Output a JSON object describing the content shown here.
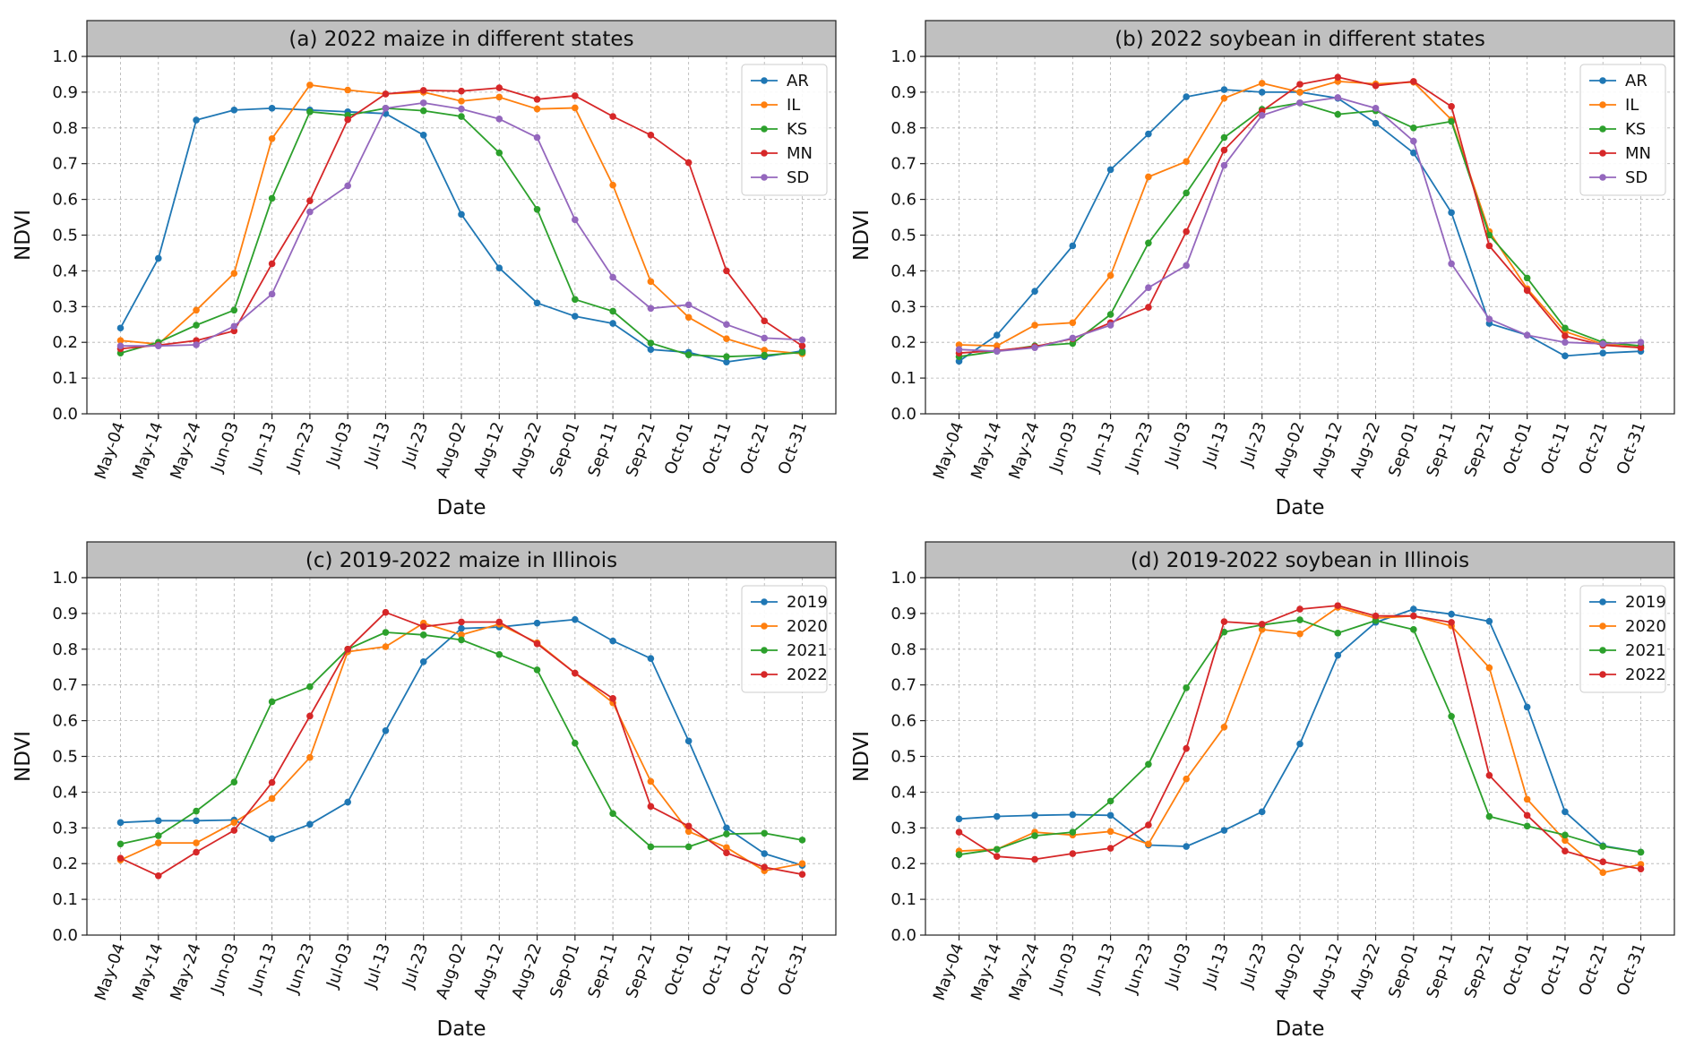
{
  "chart_data": [
    {
      "type": "line",
      "title": "(a) 2022 maize in different states",
      "xlabel": "Date",
      "ylabel": "NDVI",
      "ylim": [
        0.0,
        1.0
      ],
      "yticks": [
        "0.0",
        "0.1",
        "0.2",
        "0.3",
        "0.4",
        "0.5",
        "0.6",
        "0.7",
        "0.8",
        "0.9",
        "1.0"
      ],
      "grid": true,
      "legend_position": "top-right",
      "categories": [
        "May-04",
        "May-14",
        "May-24",
        "Jun-03",
        "Jun-13",
        "Jun-23",
        "Jul-03",
        "Jul-13",
        "Jul-23",
        "Aug-02",
        "Aug-12",
        "Aug-22",
        "Sep-01",
        "Sep-11",
        "Sep-21",
        "Oct-01",
        "Oct-11",
        "Oct-21",
        "Oct-31"
      ],
      "series": [
        {
          "name": "AR",
          "color": "#1f77b4",
          "values": [
            0.24,
            0.435,
            0.822,
            0.85,
            0.855,
            0.85,
            0.845,
            0.84,
            0.78,
            0.558,
            0.408,
            0.31,
            0.273,
            0.253,
            0.18,
            0.172,
            0.145,
            0.16,
            0.176
          ]
        },
        {
          "name": "IL",
          "color": "#ff7f0e",
          "values": [
            0.205,
            0.195,
            0.29,
            0.393,
            0.77,
            0.92,
            0.906,
            0.895,
            0.9,
            0.875,
            0.886,
            0.853,
            0.856,
            0.64,
            0.37,
            0.27,
            0.21,
            0.178,
            0.168
          ]
        },
        {
          "name": "KS",
          "color": "#2ca02c",
          "values": [
            0.17,
            0.2,
            0.248,
            0.29,
            0.603,
            0.845,
            0.835,
            0.855,
            0.848,
            0.832,
            0.73,
            0.572,
            0.32,
            0.287,
            0.198,
            0.165,
            0.16,
            0.164,
            0.172
          ]
        },
        {
          "name": "MN",
          "color": "#d62728",
          "values": [
            0.182,
            0.192,
            0.205,
            0.232,
            0.42,
            0.596,
            0.823,
            0.895,
            0.905,
            0.903,
            0.912,
            0.88,
            0.89,
            0.832,
            0.78,
            0.703,
            0.4,
            0.26,
            0.19
          ]
        },
        {
          "name": "SD",
          "color": "#9467bd",
          "values": [
            0.19,
            0.19,
            0.193,
            0.245,
            0.335,
            0.565,
            0.638,
            0.855,
            0.87,
            0.853,
            0.825,
            0.773,
            0.543,
            0.382,
            0.295,
            0.305,
            0.25,
            0.212,
            0.207
          ]
        }
      ]
    },
    {
      "type": "line",
      "title": "(b) 2022 soybean in different states",
      "xlabel": "Date",
      "ylabel": "NDVI",
      "ylim": [
        0.0,
        1.0
      ],
      "yticks": [
        "0.0",
        "0.1",
        "0.2",
        "0.3",
        "0.4",
        "0.5",
        "0.6",
        "0.7",
        "0.8",
        "0.9",
        "1.0"
      ],
      "grid": true,
      "legend_position": "top-right",
      "categories": [
        "May-04",
        "May-14",
        "May-24",
        "Jun-03",
        "Jun-13",
        "Jun-23",
        "Jul-03",
        "Jul-13",
        "Jul-23",
        "Aug-02",
        "Aug-12",
        "Aug-22",
        "Sep-01",
        "Sep-11",
        "Sep-21",
        "Oct-01",
        "Oct-11",
        "Oct-21",
        "Oct-31"
      ],
      "series": [
        {
          "name": "AR",
          "color": "#1f77b4",
          "values": [
            0.147,
            0.22,
            0.343,
            0.47,
            0.683,
            0.783,
            0.887,
            0.907,
            0.9,
            0.9,
            0.883,
            0.813,
            0.73,
            0.563,
            0.253,
            0.22,
            0.162,
            0.17,
            0.175
          ]
        },
        {
          "name": "IL",
          "color": "#ff7f0e",
          "values": [
            0.193,
            0.19,
            0.248,
            0.255,
            0.387,
            0.663,
            0.706,
            0.883,
            0.925,
            0.9,
            0.93,
            0.923,
            0.928,
            0.823,
            0.51,
            0.35,
            0.23,
            0.195,
            0.185
          ]
        },
        {
          "name": "KS",
          "color": "#2ca02c",
          "values": [
            0.16,
            0.175,
            0.19,
            0.197,
            0.278,
            0.478,
            0.618,
            0.773,
            0.852,
            0.87,
            0.838,
            0.848,
            0.8,
            0.818,
            0.5,
            0.38,
            0.24,
            0.2,
            0.19
          ]
        },
        {
          "name": "MN",
          "color": "#d62728",
          "values": [
            0.17,
            0.177,
            0.188,
            0.21,
            0.255,
            0.298,
            0.51,
            0.738,
            0.847,
            0.922,
            0.942,
            0.918,
            0.93,
            0.86,
            0.47,
            0.345,
            0.218,
            0.192,
            0.185
          ]
        },
        {
          "name": "SD",
          "color": "#9467bd",
          "values": [
            0.18,
            0.175,
            0.185,
            0.212,
            0.248,
            0.353,
            0.415,
            0.695,
            0.835,
            0.87,
            0.885,
            0.855,
            0.763,
            0.42,
            0.265,
            0.22,
            0.2,
            0.196,
            0.2
          ]
        }
      ]
    },
    {
      "type": "line",
      "title": "(c) 2019-2022 maize in Illinois",
      "xlabel": "Date",
      "ylabel": "NDVI",
      "ylim": [
        0.0,
        1.0
      ],
      "yticks": [
        "0.0",
        "0.1",
        "0.2",
        "0.3",
        "0.4",
        "0.5",
        "0.6",
        "0.7",
        "0.8",
        "0.9",
        "1.0"
      ],
      "grid": true,
      "legend_position": "top-right",
      "categories": [
        "May-04",
        "May-14",
        "May-24",
        "Jun-03",
        "Jun-13",
        "Jun-23",
        "Jul-03",
        "Jul-13",
        "Jul-23",
        "Aug-02",
        "Aug-12",
        "Aug-22",
        "Sep-01",
        "Sep-11",
        "Sep-21",
        "Oct-01",
        "Oct-11",
        "Oct-21",
        "Oct-31"
      ],
      "series": [
        {
          "name": "2019",
          "color": "#1f77b4",
          "values": [
            0.315,
            0.32,
            0.32,
            0.322,
            0.27,
            0.31,
            0.372,
            0.572,
            0.765,
            0.858,
            0.862,
            0.873,
            0.883,
            0.823,
            0.774,
            0.543,
            0.3,
            0.228,
            0.195
          ]
        },
        {
          "name": "2020",
          "color": "#ff7f0e",
          "values": [
            0.21,
            0.258,
            0.258,
            0.315,
            0.382,
            0.497,
            0.793,
            0.807,
            0.873,
            0.84,
            0.87,
            0.818,
            0.733,
            0.65,
            0.43,
            0.29,
            0.245,
            0.18,
            0.2
          ]
        },
        {
          "name": "2021",
          "color": "#2ca02c",
          "values": [
            0.255,
            0.278,
            0.347,
            0.428,
            0.653,
            0.695,
            0.8,
            0.847,
            0.84,
            0.826,
            0.785,
            0.742,
            0.537,
            0.34,
            0.247,
            0.247,
            0.283,
            0.285,
            0.266
          ]
        },
        {
          "name": "2022",
          "color": "#d62728",
          "values": [
            0.215,
            0.166,
            0.232,
            0.293,
            0.427,
            0.613,
            0.8,
            0.903,
            0.863,
            0.876,
            0.876,
            0.815,
            0.733,
            0.662,
            0.36,
            0.305,
            0.23,
            0.19,
            0.17
          ]
        }
      ]
    },
    {
      "type": "line",
      "title": "(d) 2019-2022 soybean in Illinois",
      "xlabel": "Date",
      "ylabel": "NDVI",
      "ylim": [
        0.0,
        1.0
      ],
      "yticks": [
        "0.0",
        "0.1",
        "0.2",
        "0.3",
        "0.4",
        "0.5",
        "0.6",
        "0.7",
        "0.8",
        "0.9",
        "1.0"
      ],
      "grid": true,
      "legend_position": "top-right",
      "categories": [
        "May-04",
        "May-14",
        "May-24",
        "Jun-03",
        "Jun-13",
        "Jun-23",
        "Jul-03",
        "Jul-13",
        "Jul-23",
        "Aug-02",
        "Aug-12",
        "Aug-22",
        "Sep-01",
        "Sep-11",
        "Sep-21",
        "Oct-01",
        "Oct-11",
        "Oct-21",
        "Oct-31"
      ],
      "series": [
        {
          "name": "2019",
          "color": "#1f77b4",
          "values": [
            0.325,
            0.332,
            0.335,
            0.337,
            0.335,
            0.252,
            0.248,
            0.293,
            0.345,
            0.535,
            0.783,
            0.875,
            0.912,
            0.898,
            0.878,
            0.638,
            0.345,
            0.25,
            0.232
          ]
        },
        {
          "name": "2020",
          "color": "#ff7f0e",
          "values": [
            0.235,
            0.24,
            0.288,
            0.28,
            0.29,
            0.255,
            0.437,
            0.582,
            0.855,
            0.843,
            0.917,
            0.887,
            0.893,
            0.865,
            0.748,
            0.38,
            0.265,
            0.175,
            0.198
          ]
        },
        {
          "name": "2021",
          "color": "#2ca02c",
          "values": [
            0.225,
            0.24,
            0.278,
            0.288,
            0.375,
            0.478,
            0.692,
            0.848,
            0.868,
            0.882,
            0.845,
            0.88,
            0.855,
            0.612,
            0.332,
            0.305,
            0.28,
            0.248,
            0.232
          ]
        },
        {
          "name": "2022",
          "color": "#d62728",
          "values": [
            0.288,
            0.22,
            0.212,
            0.228,
            0.243,
            0.308,
            0.522,
            0.877,
            0.87,
            0.912,
            0.922,
            0.893,
            0.893,
            0.875,
            0.447,
            0.335,
            0.235,
            0.205,
            0.185
          ]
        }
      ]
    }
  ]
}
